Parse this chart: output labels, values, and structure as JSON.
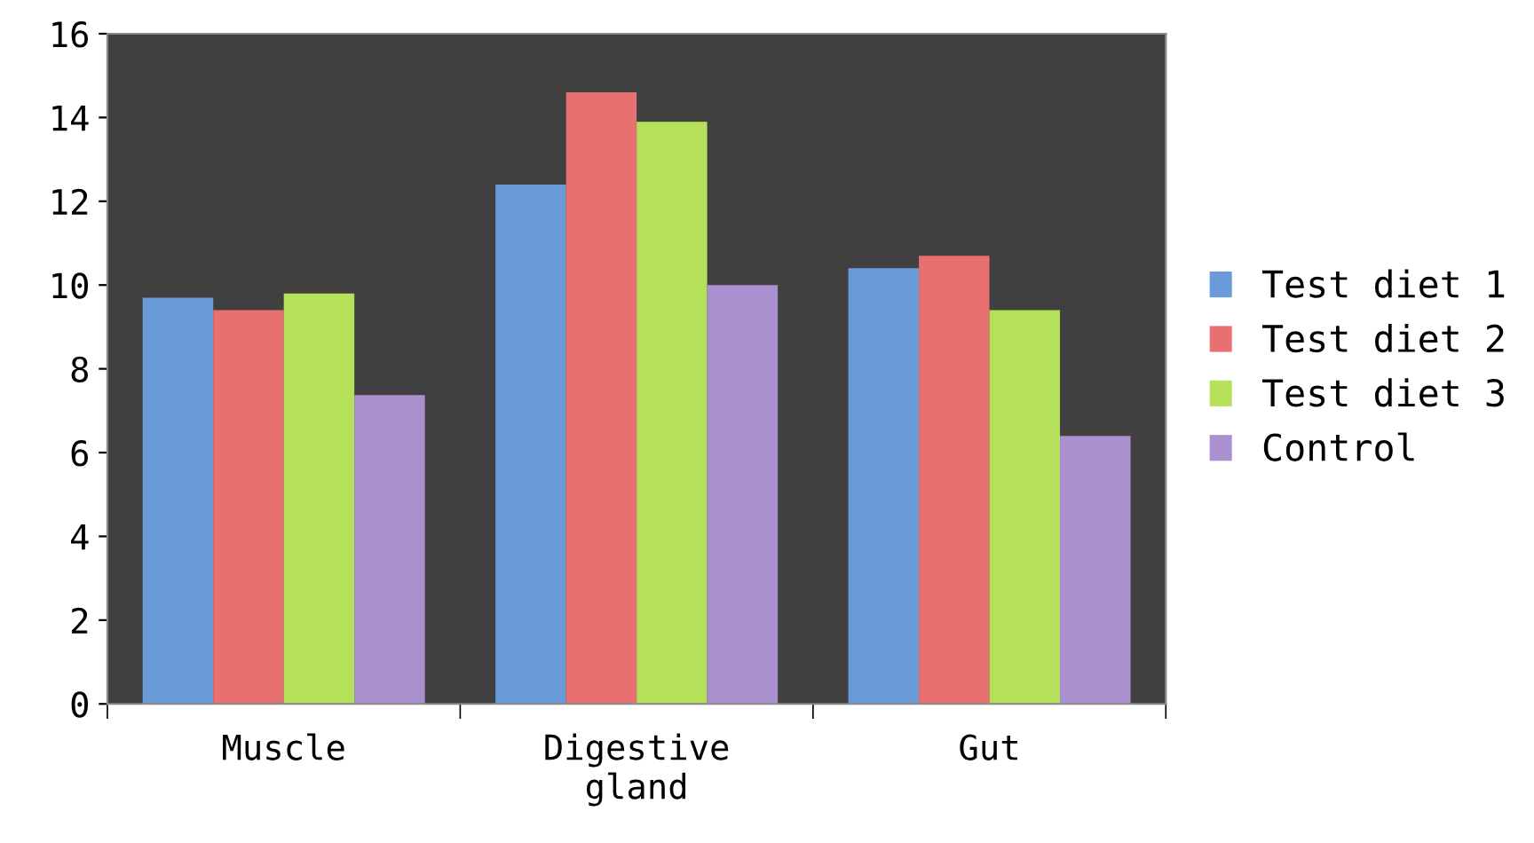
{
  "chart_data": {
    "type": "bar",
    "categories": [
      "Muscle",
      "Digestive\ngland",
      "Gut"
    ],
    "series": [
      {
        "name": "Test diet 1",
        "color": "#6a9ad8",
        "values": [
          9.7,
          12.4,
          10.4
        ]
      },
      {
        "name": "Test diet 2",
        "color": "#e87070",
        "values": [
          9.4,
          14.6,
          10.7
        ]
      },
      {
        "name": "Test diet 3",
        "color": "#b4e05a",
        "values": [
          9.8,
          13.9,
          9.4
        ]
      },
      {
        "name": "Control",
        "color": "#ab90d0",
        "values": [
          7.37,
          10.0,
          6.4
        ]
      }
    ],
    "ylim": [
      0,
      16
    ],
    "yticks": [
      0,
      2,
      4,
      6,
      8,
      10,
      12,
      14,
      16
    ],
    "grid": false,
    "legend": "right"
  }
}
